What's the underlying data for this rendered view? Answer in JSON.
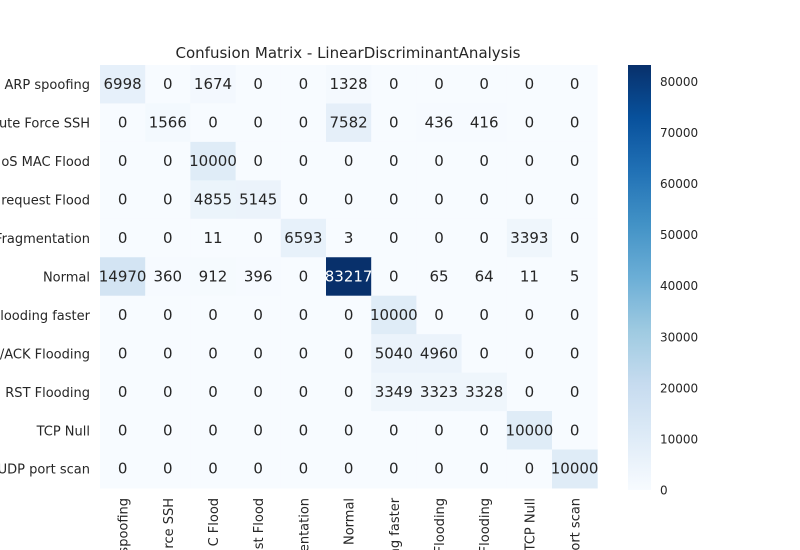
{
  "chart_data": {
    "type": "heatmap",
    "title": "Confusion Matrix - LinearDiscriminantAnalysis",
    "row_labels": [
      "ARP spoofing",
      "ute Force SSH",
      "oS MAC Flood",
      "o request Flood",
      "Fragmentation",
      "Normal",
      "Flooding faster",
      "/ACK Flooding",
      "I RST Flooding",
      "TCP Null",
      "UDP port scan"
    ],
    "col_labels": [
      "spoofing",
      "rce SSH",
      "C Flood",
      "st Flood",
      "entation",
      "Normal",
      "ng faster",
      "Flooding",
      "Flooding",
      "TCP Null",
      "ort scan"
    ],
    "values": [
      [
        6998,
        0,
        1674,
        0,
        0,
        1328,
        0,
        0,
        0,
        0,
        0
      ],
      [
        0,
        1566,
        0,
        0,
        0,
        7582,
        0,
        436,
        416,
        0,
        0
      ],
      [
        0,
        0,
        10000,
        0,
        0,
        0,
        0,
        0,
        0,
        0,
        0
      ],
      [
        0,
        0,
        4855,
        5145,
        0,
        0,
        0,
        0,
        0,
        0,
        0
      ],
      [
        0,
        0,
        11,
        0,
        6593,
        3,
        0,
        0,
        0,
        3393,
        0
      ],
      [
        14970,
        360,
        912,
        396,
        0,
        83217,
        0,
        65,
        64,
        11,
        5
      ],
      [
        0,
        0,
        0,
        0,
        0,
        0,
        10000,
        0,
        0,
        0,
        0
      ],
      [
        0,
        0,
        0,
        0,
        0,
        0,
        5040,
        4960,
        0,
        0,
        0
      ],
      [
        0,
        0,
        0,
        0,
        0,
        0,
        3349,
        3323,
        3328,
        0,
        0
      ],
      [
        0,
        0,
        0,
        0,
        0,
        0,
        0,
        0,
        0,
        10000,
        0
      ],
      [
        0,
        0,
        0,
        0,
        0,
        0,
        0,
        0,
        0,
        0,
        10000
      ]
    ],
    "colorbar": {
      "min": 0,
      "max": 83217,
      "ticks": [
        0,
        10000,
        20000,
        30000,
        40000,
        50000,
        60000,
        70000,
        80000
      ],
      "colormap": "Blues",
      "low_color": "#f7fbff",
      "high_color": "#08306b"
    }
  }
}
